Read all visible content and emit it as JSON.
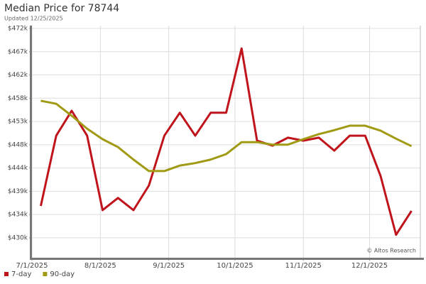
{
  "chart_data": {
    "type": "line",
    "title": "Median Price for 78744",
    "subtitle": "Updated 12/25/2025",
    "annotation": "© Altos Research",
    "x": [
      "7/5/2025",
      "7/12/2025",
      "7/19/2025",
      "7/26/2025",
      "8/2/2025",
      "8/9/2025",
      "8/16/2025",
      "8/23/2025",
      "8/30/2025",
      "9/6/2025",
      "9/13/2025",
      "9/20/2025",
      "9/27/2025",
      "10/4/2025",
      "10/11/2025",
      "10/18/2025",
      "10/25/2025",
      "11/1/2025",
      "11/8/2025",
      "11/15/2025",
      "11/22/2025",
      "11/29/2025",
      "12/6/2025",
      "12/13/2025",
      "12/20/2025"
    ],
    "series": [
      {
        "name": "7-day",
        "color": "#c0141c",
        "values": [
          436000,
          450100,
          455100,
          450100,
          435150,
          437600,
          435150,
          440100,
          450100,
          454700,
          450100,
          454700,
          454700,
          467600,
          449100,
          448100,
          449700,
          449100,
          449700,
          447100,
          450100,
          450100,
          442000,
          430200,
          435000
        ]
      },
      {
        "name": "90-day",
        "color": "#a09a14",
        "values": [
          457100,
          456500,
          454100,
          451500,
          449400,
          447800,
          445300,
          443000,
          443000,
          444100,
          444600,
          445300,
          446400,
          448800,
          448800,
          448300,
          448300,
          449400,
          450400,
          451200,
          452100,
          452100,
          451100,
          449500,
          448000
        ]
      }
    ],
    "xlim": [
      "7/1/2025",
      "12/24/2025"
    ],
    "xticks": [
      "7/1/2025",
      "8/1/2025",
      "9/1/2025",
      "10/1/2025",
      "11/1/2025",
      "12/1/2025"
    ],
    "ylim": [
      425600,
      472200
    ],
    "yticks": [
      {
        "value": 429600,
        "label": "$430k"
      },
      {
        "value": 434270,
        "label": "$434k"
      },
      {
        "value": 438940,
        "label": "$439k"
      },
      {
        "value": 443610,
        "label": "$444k"
      },
      {
        "value": 448280,
        "label": "$448k"
      },
      {
        "value": 452950,
        "label": "$453k"
      },
      {
        "value": 457620,
        "label": "$458k"
      },
      {
        "value": 462290,
        "label": "$462k"
      },
      {
        "value": 466960,
        "label": "$467k"
      },
      {
        "value": 471630,
        "label": "$472k"
      }
    ],
    "grid": true,
    "legend": "bottom-left"
  }
}
